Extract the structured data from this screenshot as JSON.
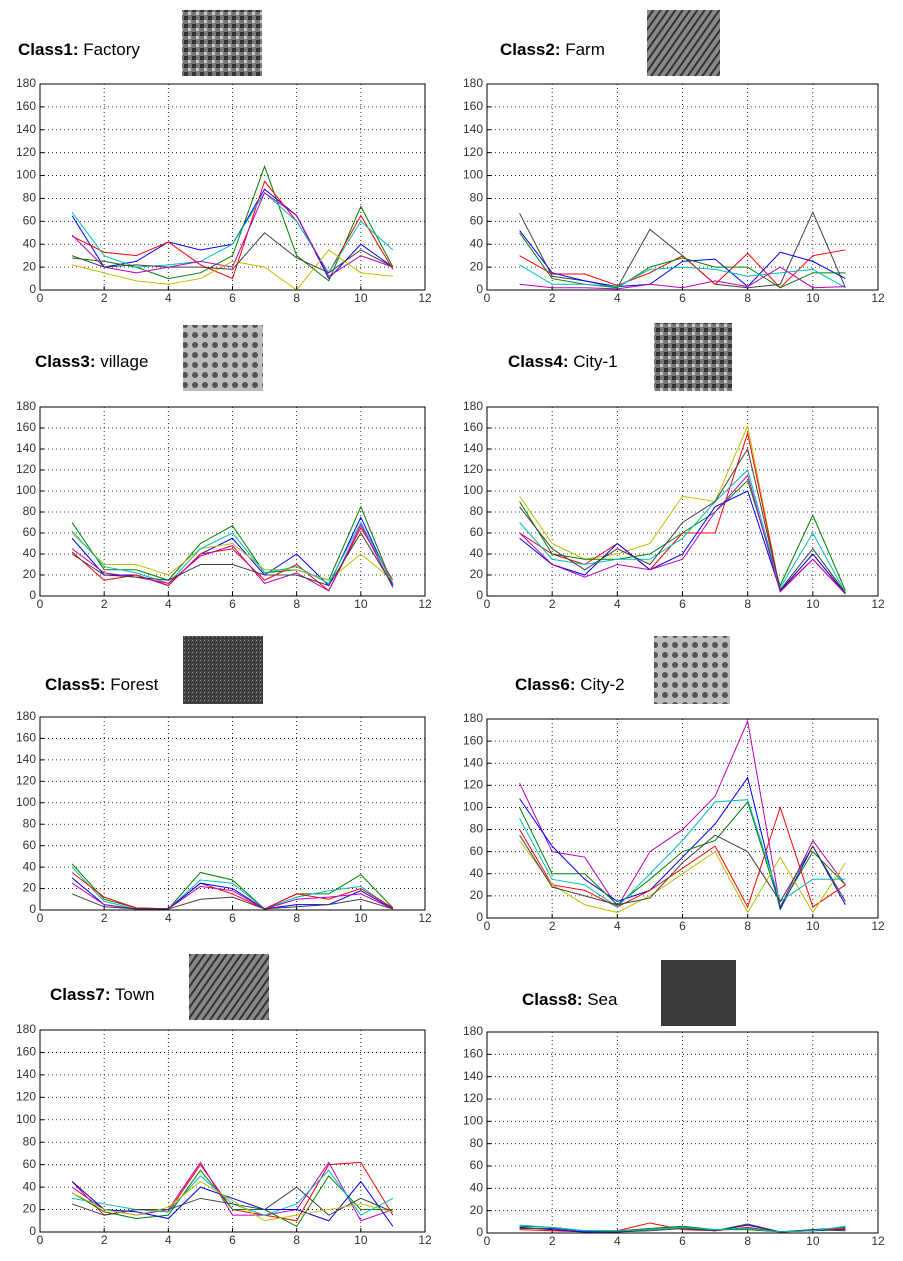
{
  "chart_data": [
    {
      "type": "line",
      "title_prefix": "Class1:",
      "title": "Factory",
      "x": [
        1,
        2,
        3,
        4,
        5,
        6,
        7,
        8,
        9,
        10,
        11
      ],
      "xlim": [
        0,
        12
      ],
      "xticks": [
        0,
        2,
        4,
        6,
        8,
        10,
        12
      ],
      "ylim": [
        0,
        180
      ],
      "yticks": [
        0,
        20,
        40,
        60,
        80,
        100,
        120,
        140,
        160,
        180
      ],
      "grid": true,
      "series": [
        {
          "color": "#0000ff",
          "values": [
            65,
            20,
            25,
            42,
            35,
            40,
            88,
            65,
            10,
            40,
            20
          ]
        },
        {
          "color": "#008000",
          "values": [
            28,
            25,
            20,
            10,
            15,
            30,
            108,
            30,
            8,
            73,
            20
          ]
        },
        {
          "color": "#ff0000",
          "values": [
            47,
            33,
            30,
            42,
            22,
            10,
            95,
            60,
            15,
            65,
            18
          ]
        },
        {
          "color": "#00bfbf",
          "values": [
            68,
            30,
            20,
            22,
            25,
            40,
            85,
            60,
            15,
            60,
            35
          ]
        },
        {
          "color": "#bf00bf",
          "values": [
            48,
            20,
            15,
            20,
            25,
            20,
            85,
            65,
            12,
            30,
            20
          ]
        },
        {
          "color": "#bfbf00",
          "values": [
            22,
            15,
            8,
            5,
            10,
            25,
            20,
            0,
            35,
            15,
            12
          ]
        },
        {
          "color": "#404040",
          "values": [
            30,
            20,
            22,
            20,
            20,
            18,
            50,
            28,
            15,
            35,
            20
          ]
        }
      ]
    },
    {
      "type": "line",
      "title_prefix": "Class2:",
      "title": "Farm",
      "x": [
        1,
        2,
        3,
        4,
        5,
        6,
        7,
        8,
        9,
        10,
        11
      ],
      "xlim": [
        0,
        12
      ],
      "xticks": [
        0,
        2,
        4,
        6,
        8,
        10,
        12
      ],
      "ylim": [
        0,
        180
      ],
      "yticks": [
        0,
        20,
        40,
        60,
        80,
        100,
        120,
        140,
        160,
        180
      ],
      "grid": true,
      "series": [
        {
          "color": "#404040",
          "values": [
            67,
            12,
            8,
            2,
            53,
            30,
            5,
            2,
            5,
            68,
            2
          ]
        },
        {
          "color": "#ff0000",
          "values": [
            30,
            14,
            14,
            4,
            15,
            30,
            5,
            32,
            2,
            30,
            35
          ]
        },
        {
          "color": "#0000ff",
          "values": [
            52,
            15,
            8,
            3,
            5,
            25,
            27,
            3,
            33,
            25,
            10
          ]
        },
        {
          "color": "#008000",
          "values": [
            50,
            10,
            5,
            2,
            20,
            28,
            20,
            20,
            2,
            15,
            15
          ]
        },
        {
          "color": "#00bfbf",
          "values": [
            22,
            5,
            5,
            3,
            18,
            20,
            18,
            12,
            15,
            18,
            2
          ]
        },
        {
          "color": "#bf00bf",
          "values": [
            5,
            2,
            2,
            1,
            5,
            2,
            8,
            3,
            20,
            2,
            3
          ]
        }
      ]
    },
    {
      "type": "line",
      "title_prefix": "Class3:",
      "title": "village",
      "x": [
        1,
        2,
        3,
        4,
        5,
        6,
        7,
        8,
        9,
        10,
        11
      ],
      "xlim": [
        0,
        12
      ],
      "xticks": [
        0,
        2,
        4,
        6,
        8,
        10,
        12
      ],
      "ylim": [
        0,
        180
      ],
      "yticks": [
        0,
        20,
        40,
        60,
        80,
        100,
        120,
        140,
        160,
        180
      ],
      "grid": true,
      "series": [
        {
          "color": "#008000",
          "values": [
            70,
            25,
            25,
            15,
            50,
            67,
            22,
            25,
            15,
            85,
            10
          ]
        },
        {
          "color": "#0000ff",
          "values": [
            55,
            20,
            20,
            10,
            40,
            55,
            20,
            40,
            10,
            75,
            10
          ]
        },
        {
          "color": "#ff0000",
          "values": [
            42,
            15,
            20,
            10,
            40,
            45,
            15,
            30,
            5,
            65,
            15
          ]
        },
        {
          "color": "#bfbf00",
          "values": [
            60,
            30,
            30,
            20,
            45,
            50,
            25,
            25,
            15,
            40,
            15
          ]
        },
        {
          "color": "#00bfbf",
          "values": [
            62,
            28,
            22,
            12,
            45,
            60,
            22,
            28,
            12,
            70,
            12
          ]
        },
        {
          "color": "#bf00bf",
          "values": [
            45,
            22,
            18,
            12,
            38,
            48,
            12,
            22,
            5,
            68,
            8
          ]
        },
        {
          "color": "#404040",
          "values": [
            40,
            20,
            18,
            15,
            30,
            30,
            20,
            20,
            10,
            60,
            10
          ]
        }
      ]
    },
    {
      "type": "line",
      "title_prefix": "Class4:",
      "title": "City-1",
      "x": [
        1,
        2,
        3,
        4,
        5,
        6,
        7,
        8,
        9,
        10,
        11
      ],
      "xlim": [
        0,
        12
      ],
      "xticks": [
        0,
        2,
        4,
        6,
        8,
        10,
        12
      ],
      "ylim": [
        0,
        180
      ],
      "yticks": [
        0,
        20,
        40,
        60,
        80,
        100,
        120,
        140,
        160,
        180
      ],
      "grid": true,
      "series": [
        {
          "color": "#bfbf00",
          "values": [
            95,
            50,
            35,
            40,
            50,
            95,
            90,
            162,
            5,
            40,
            3
          ]
        },
        {
          "color": "#ff0000",
          "values": [
            60,
            40,
            30,
            50,
            25,
            60,
            60,
            155,
            5,
            35,
            2
          ]
        },
        {
          "color": "#008000",
          "values": [
            90,
            40,
            35,
            35,
            40,
            60,
            80,
            110,
            10,
            77,
            5
          ]
        },
        {
          "color": "#0000ff",
          "values": [
            55,
            30,
            20,
            50,
            25,
            40,
            85,
            100,
            5,
            40,
            2
          ]
        },
        {
          "color": "#00bfbf",
          "values": [
            70,
            35,
            30,
            35,
            35,
            55,
            90,
            120,
            8,
            60,
            3
          ]
        },
        {
          "color": "#bf00bf",
          "values": [
            60,
            30,
            18,
            30,
            25,
            35,
            80,
            115,
            4,
            35,
            2
          ]
        },
        {
          "color": "#404040",
          "values": [
            85,
            45,
            25,
            45,
            30,
            70,
            90,
            140,
            6,
            45,
            3
          ]
        }
      ]
    },
    {
      "type": "line",
      "title_prefix": "Class5:",
      "title": "Forest",
      "x": [
        1,
        2,
        3,
        4,
        5,
        6,
        7,
        8,
        9,
        10,
        11
      ],
      "xlim": [
        0,
        12
      ],
      "xticks": [
        0,
        2,
        4,
        6,
        8,
        10,
        12
      ],
      "ylim": [
        0,
        180
      ],
      "yticks": [
        0,
        20,
        40,
        60,
        80,
        100,
        120,
        140,
        160,
        180
      ],
      "grid": true,
      "series": [
        {
          "color": "#008000",
          "values": [
            43,
            10,
            2,
            1,
            35,
            28,
            1,
            15,
            15,
            33,
            2
          ]
        },
        {
          "color": "#00bfbf",
          "values": [
            40,
            8,
            1,
            1,
            28,
            25,
            1,
            12,
            18,
            22,
            1
          ]
        },
        {
          "color": "#ff0000",
          "values": [
            35,
            12,
            2,
            1,
            25,
            15,
            1,
            15,
            10,
            20,
            2
          ]
        },
        {
          "color": "#0000ff",
          "values": [
            30,
            5,
            1,
            1,
            25,
            20,
            1,
            5,
            5,
            18,
            1
          ]
        },
        {
          "color": "#bf00bf",
          "values": [
            25,
            5,
            1,
            1,
            22,
            18,
            1,
            10,
            12,
            15,
            1
          ]
        },
        {
          "color": "#404040",
          "values": [
            15,
            3,
            1,
            1,
            10,
            12,
            1,
            3,
            5,
            10,
            1
          ]
        }
      ]
    },
    {
      "type": "line",
      "title_prefix": "Class6:",
      "title": "City-2",
      "x": [
        1,
        2,
        3,
        4,
        5,
        6,
        7,
        8,
        9,
        10,
        11
      ],
      "xlim": [
        0,
        12
      ],
      "xticks": [
        0,
        2,
        4,
        6,
        8,
        10,
        12
      ],
      "ylim": [
        0,
        180
      ],
      "yticks": [
        0,
        20,
        40,
        60,
        80,
        100,
        120,
        140,
        160,
        180
      ],
      "grid": true,
      "series": [
        {
          "color": "#bf00bf",
          "values": [
            122,
            60,
            55,
            10,
            60,
            80,
            110,
            178,
            10,
            70,
            30
          ]
        },
        {
          "color": "#0000ff",
          "values": [
            108,
            65,
            35,
            15,
            25,
            55,
            85,
            127,
            8,
            65,
            12
          ]
        },
        {
          "color": "#008000",
          "values": [
            100,
            40,
            40,
            12,
            35,
            60,
            70,
            105,
            10,
            60,
            30
          ]
        },
        {
          "color": "#ff0000",
          "values": [
            80,
            30,
            25,
            10,
            25,
            45,
            65,
            10,
            100,
            10,
            30
          ]
        },
        {
          "color": "#bfbf00",
          "values": [
            70,
            30,
            12,
            5,
            20,
            40,
            60,
            5,
            55,
            5,
            50
          ]
        },
        {
          "color": "#00bfbf",
          "values": [
            90,
            35,
            30,
            10,
            40,
            70,
            105,
            107,
            15,
            35,
            35
          ]
        },
        {
          "color": "#404040",
          "values": [
            75,
            28,
            20,
            12,
            18,
            50,
            75,
            60,
            15,
            65,
            15
          ]
        }
      ]
    },
    {
      "type": "line",
      "title_prefix": "Class7:",
      "title": "Town",
      "x": [
        1,
        2,
        3,
        4,
        5,
        6,
        7,
        8,
        9,
        10,
        11
      ],
      "xlim": [
        0,
        12
      ],
      "xticks": [
        0,
        2,
        4,
        6,
        8,
        10,
        12
      ],
      "ylim": [
        0,
        180
      ],
      "yticks": [
        0,
        20,
        40,
        60,
        80,
        100,
        120,
        140,
        160,
        180
      ],
      "grid": true,
      "series": [
        {
          "color": "#ff0000",
          "values": [
            45,
            15,
            20,
            18,
            60,
            20,
            15,
            10,
            60,
            62,
            15
          ]
        },
        {
          "color": "#bf00bf",
          "values": [
            40,
            20,
            15,
            20,
            62,
            15,
            15,
            20,
            62,
            10,
            20
          ]
        },
        {
          "color": "#008000",
          "values": [
            35,
            18,
            12,
            15,
            55,
            20,
            20,
            5,
            50,
            20,
            20
          ]
        },
        {
          "color": "#00bfbf",
          "values": [
            30,
            25,
            20,
            18,
            50,
            25,
            15,
            25,
            55,
            15,
            30
          ]
        },
        {
          "color": "#0000ff",
          "values": [
            45,
            20,
            18,
            12,
            40,
            30,
            20,
            20,
            10,
            45,
            5
          ]
        },
        {
          "color": "#404040",
          "values": [
            25,
            15,
            20,
            20,
            30,
            25,
            20,
            40,
            15,
            30,
            18
          ]
        },
        {
          "color": "#bfbf00",
          "values": [
            35,
            20,
            15,
            22,
            45,
            28,
            10,
            15,
            20,
            25,
            18
          ]
        }
      ]
    },
    {
      "type": "line",
      "title_prefix": "Class8:",
      "title": "Sea",
      "x": [
        1,
        2,
        3,
        4,
        5,
        6,
        7,
        8,
        9,
        10,
        11
      ],
      "xlim": [
        0,
        12
      ],
      "xticks": [
        0,
        2,
        4,
        6,
        8,
        10,
        12
      ],
      "ylim": [
        0,
        180
      ],
      "yticks": [
        0,
        20,
        40,
        60,
        80,
        100,
        120,
        140,
        160,
        180
      ],
      "grid": true,
      "series": [
        {
          "color": "#ff0000",
          "values": [
            3,
            2,
            1,
            2,
            9,
            3,
            2,
            5,
            1,
            2,
            4
          ]
        },
        {
          "color": "#008000",
          "values": [
            6,
            5,
            2,
            2,
            4,
            6,
            3,
            3,
            1,
            3,
            5
          ]
        },
        {
          "color": "#0000ff",
          "values": [
            5,
            3,
            1,
            1,
            3,
            5,
            2,
            7,
            1,
            2,
            3
          ]
        },
        {
          "color": "#404040",
          "values": [
            4,
            4,
            2,
            1,
            2,
            4,
            2,
            8,
            1,
            3,
            2
          ]
        },
        {
          "color": "#00bfbf",
          "values": [
            7,
            5,
            2,
            2,
            3,
            5,
            3,
            4,
            1,
            2,
            6
          ]
        }
      ]
    }
  ]
}
